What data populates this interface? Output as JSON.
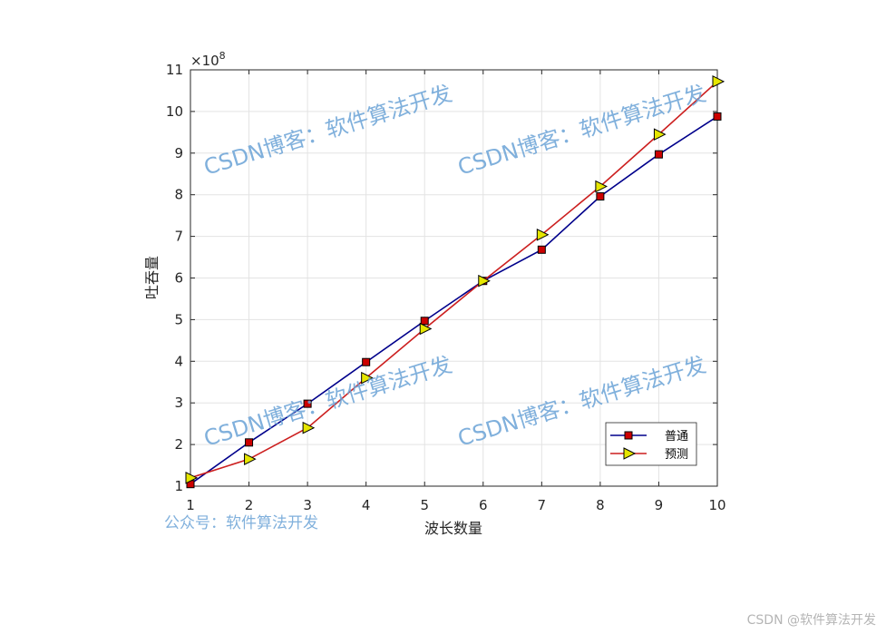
{
  "chart_data": {
    "type": "line",
    "x": [
      1,
      2,
      3,
      4,
      5,
      6,
      7,
      8,
      9,
      10
    ],
    "series": [
      {
        "name": "普通",
        "color": "#00008b",
        "marker": "square",
        "marker_fill": "#cc0000",
        "values": [
          1.05,
          2.05,
          2.98,
          3.98,
          4.97,
          5.93,
          6.68,
          7.96,
          8.97,
          9.88
        ]
      },
      {
        "name": "预测",
        "color": "#cc1f1f",
        "marker": "triangle-right",
        "marker_fill": "#e6e600",
        "values": [
          1.2,
          1.65,
          2.4,
          3.6,
          4.78,
          5.93,
          7.04,
          8.2,
          9.45,
          10.72
        ]
      }
    ],
    "xlabel": "波长数量",
    "ylabel": "吐吞量",
    "xlim": [
      1,
      10
    ],
    "ylim": [
      1,
      11
    ],
    "xticks": [
      "1",
      "2",
      "3",
      "4",
      "5",
      "6",
      "7",
      "8",
      "9",
      "10"
    ],
    "yticks": [
      "1",
      "2",
      "3",
      "4",
      "5",
      "6",
      "7",
      "8",
      "9",
      "10",
      "11"
    ],
    "y_exponent": {
      "base": "×10",
      "power": "8"
    },
    "grid": true,
    "legend_position": "bottom-right"
  },
  "watermarks": {
    "blog": "CSDN博客：软件算法开发",
    "official": "公众号：软件算法开发"
  },
  "footer_text": "CSDN @软件算法开发"
}
